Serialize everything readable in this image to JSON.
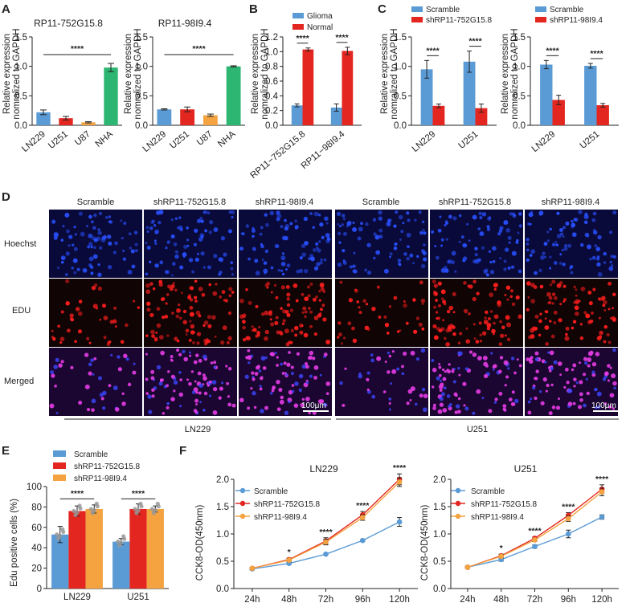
{
  "colors": {
    "blue": "#5b9bd5",
    "red": "#e3261f",
    "orange": "#f4a340",
    "green": "#2db672",
    "purple_bar": "#3a7ee6",
    "line_blue": "#5b9bd5",
    "line_red": "#e3261f",
    "line_orange": "#f4a340"
  },
  "panels": {
    "A": "A",
    "B": "B",
    "C": "C",
    "D": "D",
    "E": "E",
    "F": "F"
  },
  "panelA": {
    "left": {
      "title": "RP11-752G15.8",
      "ylabel1": "Relative expression",
      "ylabel2": "nomralized to GAPDH",
      "sig": "****"
    },
    "right": {
      "title": "RP11-98I9.4",
      "ylabel1": "Relative expression",
      "ylabel2": "nomralized to GAPDH",
      "sig": "****"
    }
  },
  "panelB": {
    "ylabel1": "Relative expression",
    "ylabel2": "nomralized to GAPDH",
    "legend": [
      "Glioma",
      "Normal"
    ],
    "sig": "****"
  },
  "panelC": {
    "left": {
      "ylabel1": "Relative expression",
      "ylabel2": "nomralized to GAPDH",
      "legend": [
        "Scramble",
        "shRP11-752G15.8"
      ],
      "sig": "****"
    },
    "right": {
      "ylabel1": "Relative expression",
      "ylabel2": "nomralized to GAPDH",
      "legend": [
        "Scramble",
        "shRP11-98I9.4"
      ],
      "sig": "****"
    }
  },
  "panelD": {
    "columns": [
      "Scramble",
      "shRP11-752G15.8",
      "shRP11-98I9.4",
      "Scramble",
      "shRP11-752G15.8",
      "shRP11-98I9.4"
    ],
    "rows": [
      "Hoechst",
      "EDU",
      "Merged"
    ],
    "groups": [
      "LN229",
      "U251"
    ],
    "scalebar": "100μm"
  },
  "panelE": {
    "ylabel": "Edu positive cells (%)",
    "legend": [
      "Scramble",
      "shRP11-752G15.8",
      "shRP11-98I9.4"
    ],
    "sig": "****"
  },
  "panelF": {
    "left": {
      "title": "LN229",
      "ylabel": "CCK8-OD(450nm)",
      "legend": [
        "Scramble",
        "shRP11-752G15.8",
        "shRP11-98I9.4"
      ]
    },
    "right": {
      "title": "U251",
      "ylabel": "CCK8-OD(450nm)",
      "legend": [
        "Scramble",
        "shRP11-752G15.8",
        "shRP11-98I9.4"
      ]
    }
  },
  "chart_data": [
    {
      "id": "A-left",
      "type": "bar",
      "title": "RP11-752G15.8",
      "categories": [
        "LN229",
        "U251",
        "U87",
        "NHA"
      ],
      "values": [
        0.22,
        0.12,
        0.05,
        0.98
      ],
      "errors": [
        0.04,
        0.03,
        0.01,
        0.07
      ],
      "colors": [
        "#5b9bd5",
        "#e3261f",
        "#f4a340",
        "#2db672"
      ],
      "ylim": [
        0,
        1.5
      ],
      "yticks": [
        "0.0",
        "0.5",
        "1.0",
        "1.5"
      ],
      "significance": "****"
    },
    {
      "id": "A-right",
      "type": "bar",
      "title": "RP11-98I9.4",
      "categories": [
        "LN229",
        "U251",
        "U87",
        "NHA"
      ],
      "values": [
        0.27,
        0.27,
        0.17,
        1.0
      ],
      "errors": [
        0.01,
        0.04,
        0.02,
        0.01
      ],
      "colors": [
        "#5b9bd5",
        "#e3261f",
        "#f4a340",
        "#2db672"
      ],
      "ylim": [
        0,
        1.5
      ],
      "yticks": [
        "0.0",
        "0.5",
        "1.0",
        "1.5"
      ],
      "significance": "****"
    },
    {
      "id": "B",
      "type": "bar",
      "categories": [
        "RP11−752G15.8",
        "RP11−98I9.4"
      ],
      "series": [
        {
          "name": "Glioma",
          "values": [
            0.27,
            0.24
          ],
          "errors": [
            0.02,
            0.05
          ]
        },
        {
          "name": "Normal",
          "values": [
            1.03,
            1.01
          ],
          "errors": [
            0.02,
            0.05
          ]
        }
      ],
      "ylim": [
        0,
        1.2
      ],
      "yticks": [
        "0.0",
        "0.2",
        "0.4",
        "0.6",
        "0.8",
        "1.0",
        "1.2"
      ],
      "significance": "****"
    },
    {
      "id": "C-left",
      "type": "bar",
      "categories": [
        "LN229",
        "U251"
      ],
      "series": [
        {
          "name": "Scramble",
          "values": [
            0.95,
            1.08
          ],
          "errors": [
            0.15,
            0.18
          ]
        },
        {
          "name": "shRP11-752G15.8",
          "values": [
            0.33,
            0.29
          ],
          "errors": [
            0.03,
            0.07
          ]
        }
      ],
      "ylim": [
        0,
        1.5
      ],
      "yticks": [
        "0.0",
        "0.5",
        "1.0",
        "1.5"
      ],
      "significance": "****"
    },
    {
      "id": "C-right",
      "type": "bar",
      "categories": [
        "LN229",
        "U251"
      ],
      "series": [
        {
          "name": "Scramble",
          "values": [
            1.03,
            1.01
          ],
          "errors": [
            0.07,
            0.04
          ]
        },
        {
          "name": "shRP11-98I9.4",
          "values": [
            0.43,
            0.34
          ],
          "errors": [
            0.08,
            0.03
          ]
        }
      ],
      "ylim": [
        0,
        1.5
      ],
      "yticks": [
        "0.0",
        "0.5",
        "1.0",
        "1.5"
      ],
      "significance": "****"
    },
    {
      "id": "E",
      "type": "bar",
      "categories": [
        "LN229",
        "U251"
      ],
      "series": [
        {
          "name": "Scramble",
          "values": [
            53,
            46
          ],
          "errors": [
            8,
            3
          ]
        },
        {
          "name": "shRP11-752G15.8",
          "values": [
            76,
            78
          ],
          "errors": [
            5,
            5
          ]
        },
        {
          "name": "shRP11-98I9.4",
          "values": [
            78,
            78
          ],
          "errors": [
            4,
            3
          ]
        }
      ],
      "ylim": [
        0,
        100
      ],
      "yticks": [
        "0",
        "20",
        "40",
        "60",
        "80",
        "100"
      ],
      "ylabel": "Edu positive cells (%)",
      "significance": "****"
    },
    {
      "id": "F-left",
      "type": "line",
      "title": "LN229",
      "x": [
        "24h",
        "48h",
        "72h",
        "96h",
        "120h"
      ],
      "series": [
        {
          "name": "Scramble",
          "values": [
            0.36,
            0.46,
            0.63,
            0.88,
            1.22
          ],
          "errors": [
            0.02,
            0.02,
            0.02,
            0.02,
            0.08
          ]
        },
        {
          "name": "shRP11-752G15.8",
          "values": [
            0.37,
            0.53,
            0.87,
            1.35,
            2.0
          ],
          "errors": [
            0.02,
            0.03,
            0.06,
            0.06,
            0.1
          ]
        },
        {
          "name": "shRP11-98I9.4",
          "values": [
            0.37,
            0.52,
            0.85,
            1.3,
            1.95
          ],
          "errors": [
            0.02,
            0.03,
            0.05,
            0.05,
            0.08
          ]
        }
      ],
      "ylim": [
        0,
        2.0
      ],
      "yticks": [
        "0.0",
        "0.5",
        "1.0",
        "1.5",
        "2.0"
      ],
      "ylabel": "CCK8-OD(450nm)",
      "annotations": [
        "",
        "*",
        "****",
        "****",
        "****"
      ]
    },
    {
      "id": "F-right",
      "type": "line",
      "title": "U251",
      "x": [
        "24h",
        "48h",
        "72h",
        "96h",
        "120h"
      ],
      "series": [
        {
          "name": "Scramble",
          "values": [
            0.39,
            0.53,
            0.77,
            1.0,
            1.31
          ],
          "errors": [
            0.02,
            0.03,
            0.03,
            0.07,
            0.04
          ]
        },
        {
          "name": "shRP11-752G15.8",
          "values": [
            0.39,
            0.6,
            0.92,
            1.34,
            1.82
          ],
          "errors": [
            0.02,
            0.03,
            0.03,
            0.05,
            0.08
          ]
        },
        {
          "name": "shRP11-98I9.4",
          "values": [
            0.39,
            0.59,
            0.89,
            1.28,
            1.77
          ],
          "errors": [
            0.02,
            0.03,
            0.03,
            0.05,
            0.07
          ]
        }
      ],
      "ylim": [
        0,
        2.0
      ],
      "yticks": [
        "0.0",
        "0.5",
        "1.0",
        "1.5",
        "2.0"
      ],
      "ylabel": "CCK8-OD(450nm)",
      "annotations": [
        "",
        "*",
        "****",
        "****",
        "****"
      ]
    }
  ]
}
